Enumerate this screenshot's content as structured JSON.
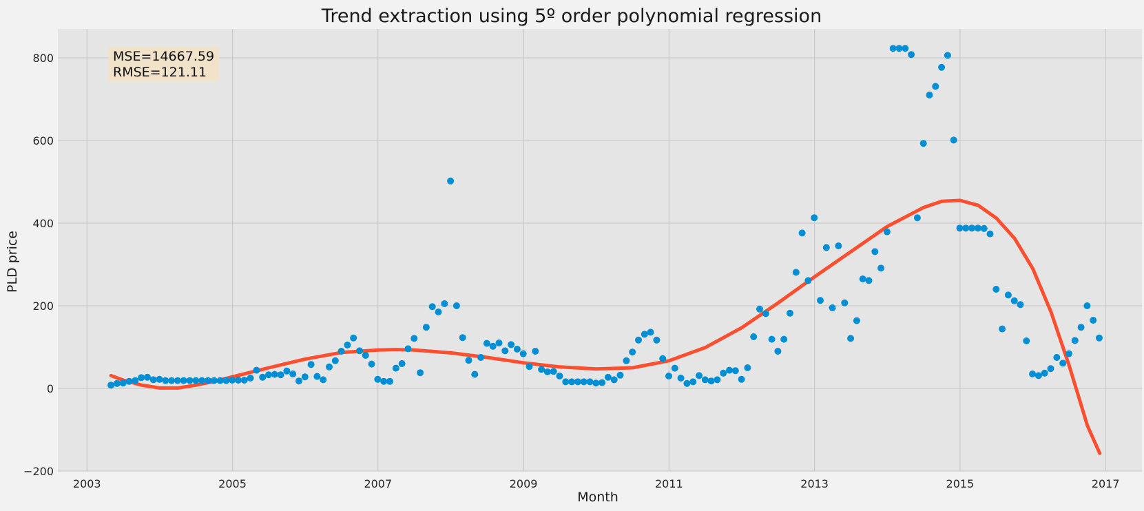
{
  "chart_data": {
    "type": "scatter",
    "title": "Trend extraction using 5º order polynomial regression",
    "xlabel": "Month",
    "ylabel": "PLD price",
    "xlim": [
      2002.6,
      2017.5
    ],
    "ylim": [
      -200,
      870
    ],
    "xticks": [
      2003,
      2005,
      2007,
      2009,
      2011,
      2013,
      2015,
      2017
    ],
    "yticks": [
      -200,
      0,
      200,
      400,
      600,
      800
    ],
    "grid": true,
    "annotation": [
      "MSE=14667.59",
      "RMSE=121.11"
    ],
    "colors": {
      "points": "#008fd5",
      "trend": "#fc4f30",
      "plot_bg": "#e5e5e5",
      "page_bg": "#f2f2f2",
      "grid": "#cbcbcb",
      "annotation_bg": "#f1e2c6"
    },
    "series": [
      {
        "type": "scatter",
        "x_start": 2003.33,
        "x_step": 0.08333,
        "values": [
          8,
          12,
          13,
          17,
          19,
          26,
          27,
          21,
          22,
          19,
          19,
          19,
          19,
          19,
          19,
          19,
          19,
          19,
          19,
          19,
          20,
          20,
          20,
          25,
          44,
          27,
          33,
          34,
          33,
          42,
          35,
          18,
          28,
          58,
          29,
          21,
          52,
          67,
          90,
          105,
          122,
          91,
          80,
          59,
          22,
          17,
          17,
          49,
          60,
          96,
          121,
          38,
          148,
          198,
          185,
          205,
          502,
          200,
          123,
          68,
          34,
          75,
          109,
          102,
          110,
          91,
          106,
          95,
          84,
          53,
          90,
          46,
          40,
          41,
          30,
          16,
          16,
          16,
          16,
          16,
          13,
          14,
          27,
          21,
          32,
          67,
          88,
          117,
          131,
          136,
          117,
          72,
          30,
          49,
          25,
          12,
          16,
          31,
          21,
          18,
          21,
          37,
          44,
          43,
          22,
          50,
          125,
          192,
          181,
          119,
          90,
          119,
          182,
          281,
          376,
          261,
          413,
          213,
          341,
          195,
          345,
          207,
          121,
          164,
          265,
          261,
          331,
          291,
          379,
          823,
          823,
          823,
          808,
          413,
          593,
          710,
          731,
          777,
          806,
          601,
          388,
          388,
          388,
          388,
          387,
          374,
          240,
          144,
          226,
          212,
          203,
          115,
          35,
          31,
          37,
          48,
          75,
          61,
          84,
          116,
          148,
          200,
          165,
          122
        ]
      },
      {
        "type": "line",
        "x": [
          2003.33,
          2003.5,
          2003.75,
          2004.0,
          2004.25,
          2004.5,
          2004.75,
          2005.0,
          2005.5,
          2006.0,
          2006.5,
          2007.0,
          2007.25,
          2007.5,
          2008.0,
          2008.5,
          2009.0,
          2009.5,
          2010.0,
          2010.5,
          2011.0,
          2011.5,
          2012.0,
          2012.5,
          2013.0,
          2013.5,
          2014.0,
          2014.5,
          2014.75,
          2015.0,
          2015.25,
          2015.5,
          2015.75,
          2016.0,
          2016.25,
          2016.5,
          2016.75,
          2016.92
        ],
        "values": [
          31,
          20,
          8,
          1,
          1,
          8,
          17,
          28,
          50,
          71,
          87,
          93,
          94,
          93,
          86,
          75,
          62,
          52,
          47,
          50,
          67,
          99,
          147,
          207,
          270,
          331,
          392,
          438,
          453,
          455,
          443,
          412,
          363,
          290,
          185,
          55,
          -90,
          -157
        ]
      }
    ]
  }
}
